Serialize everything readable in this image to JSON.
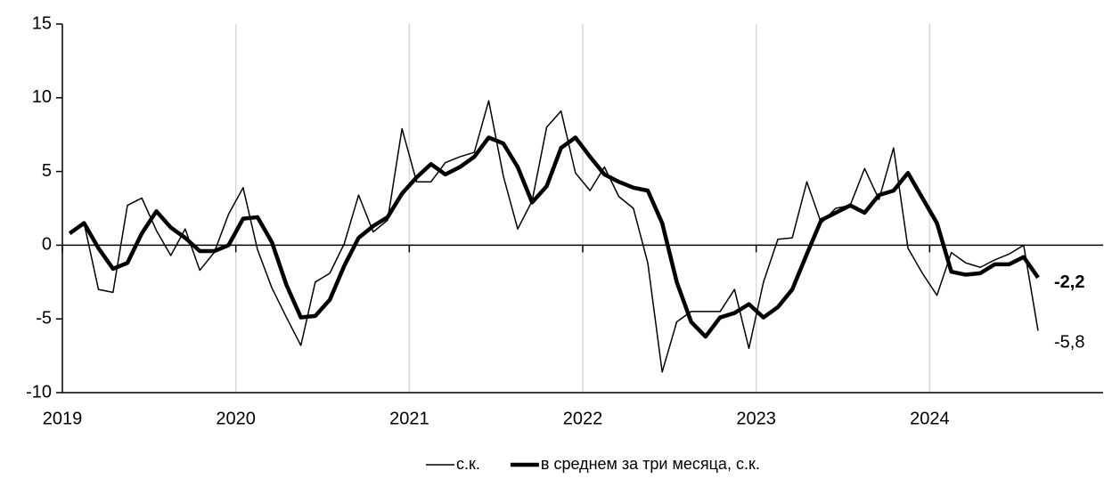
{
  "chart_data": {
    "type": "line",
    "x": [
      2019.042,
      2019.125,
      2019.208,
      2019.292,
      2019.375,
      2019.458,
      2019.542,
      2019.625,
      2019.708,
      2019.792,
      2019.875,
      2019.958,
      2020.042,
      2020.125,
      2020.208,
      2020.292,
      2020.375,
      2020.458,
      2020.542,
      2020.625,
      2020.708,
      2020.792,
      2020.875,
      2020.958,
      2021.042,
      2021.125,
      2021.208,
      2021.292,
      2021.375,
      2021.458,
      2021.542,
      2021.625,
      2021.708,
      2021.792,
      2021.875,
      2021.958,
      2022.042,
      2022.125,
      2022.208,
      2022.292,
      2022.375,
      2022.458,
      2022.542,
      2022.625,
      2022.708,
      2022.792,
      2022.875,
      2022.958,
      2023.042,
      2023.125,
      2023.208,
      2023.292,
      2023.375,
      2023.458,
      2023.542,
      2023.625,
      2023.708,
      2023.792,
      2023.875,
      2023.958,
      2024.042,
      2024.125,
      2024.208,
      2024.292,
      2024.375,
      2024.458,
      2024.542,
      2024.625
    ],
    "series": [
      {
        "name": "с.к.",
        "color": "#000000",
        "width": 1.5,
        "values": [
          0.8,
          1.5,
          -3.0,
          -3.2,
          2.7,
          3.2,
          1.0,
          -0.7,
          1.1,
          -1.7,
          -0.5,
          2.1,
          3.9,
          -0.3,
          -2.9,
          -4.9,
          -6.8,
          -2.5,
          -1.9,
          0.1,
          3.4,
          0.9,
          1.7,
          7.9,
          4.3,
          4.3,
          5.6,
          6.0,
          6.3,
          9.8,
          4.7,
          1.1,
          3.0,
          8.0,
          9.1,
          4.9,
          3.7,
          5.3,
          3.3,
          2.5,
          -1.2,
          -8.6,
          -5.2,
          -4.5,
          -4.5,
          -4.5,
          -3.0,
          -7.0,
          -2.5,
          0.4,
          0.5,
          4.3,
          1.5,
          2.5,
          2.7,
          5.2,
          3.1,
          6.6,
          -0.2,
          -1.9,
          -3.4,
          -0.5,
          -1.2,
          -1.5,
          -1.0,
          -0.6,
          0.0,
          -5.8
        ]
      },
      {
        "name": "в среднем за три месяца, с.к.",
        "color": "#000000",
        "width": 4.5,
        "values": [
          0.8,
          1.5,
          -0.2,
          -1.6,
          -1.2,
          0.8,
          2.3,
          1.2,
          0.5,
          -0.4,
          -0.4,
          0.0,
          1.8,
          1.9,
          0.2,
          -2.7,
          -4.9,
          -4.8,
          -3.7,
          -1.4,
          0.5,
          1.3,
          1.9,
          3.5,
          4.6,
          5.5,
          4.8,
          5.3,
          6.0,
          7.3,
          6.9,
          5.3,
          2.9,
          4.0,
          6.6,
          7.3,
          6.0,
          4.8,
          4.3,
          3.9,
          3.7,
          1.5,
          -2.5,
          -5.2,
          -6.2,
          -4.9,
          -4.6,
          -4.0,
          -4.9,
          -4.2,
          -3.0,
          -0.6,
          1.7,
          2.2,
          2.7,
          2.2,
          3.4,
          3.7,
          4.9,
          3.2,
          1.5,
          -1.8,
          -2.0,
          -1.9,
          -1.3,
          -1.3,
          -0.8,
          -2.2
        ]
      }
    ],
    "annotations": [
      {
        "label": "-2,2",
        "x": 2024.625,
        "y": -2.2,
        "bold": true
      },
      {
        "label": "-5,8",
        "x": 2024.625,
        "y": -5.8,
        "bold": false
      }
    ],
    "xlim": [
      2019,
      2025
    ],
    "xticks": [
      2019,
      2020,
      2021,
      2022,
      2023,
      2024
    ],
    "ylim": [
      -10,
      15
    ],
    "yticks": [
      -10,
      -5,
      0,
      5,
      10,
      15
    ],
    "grid": true,
    "legend": "bottom"
  }
}
